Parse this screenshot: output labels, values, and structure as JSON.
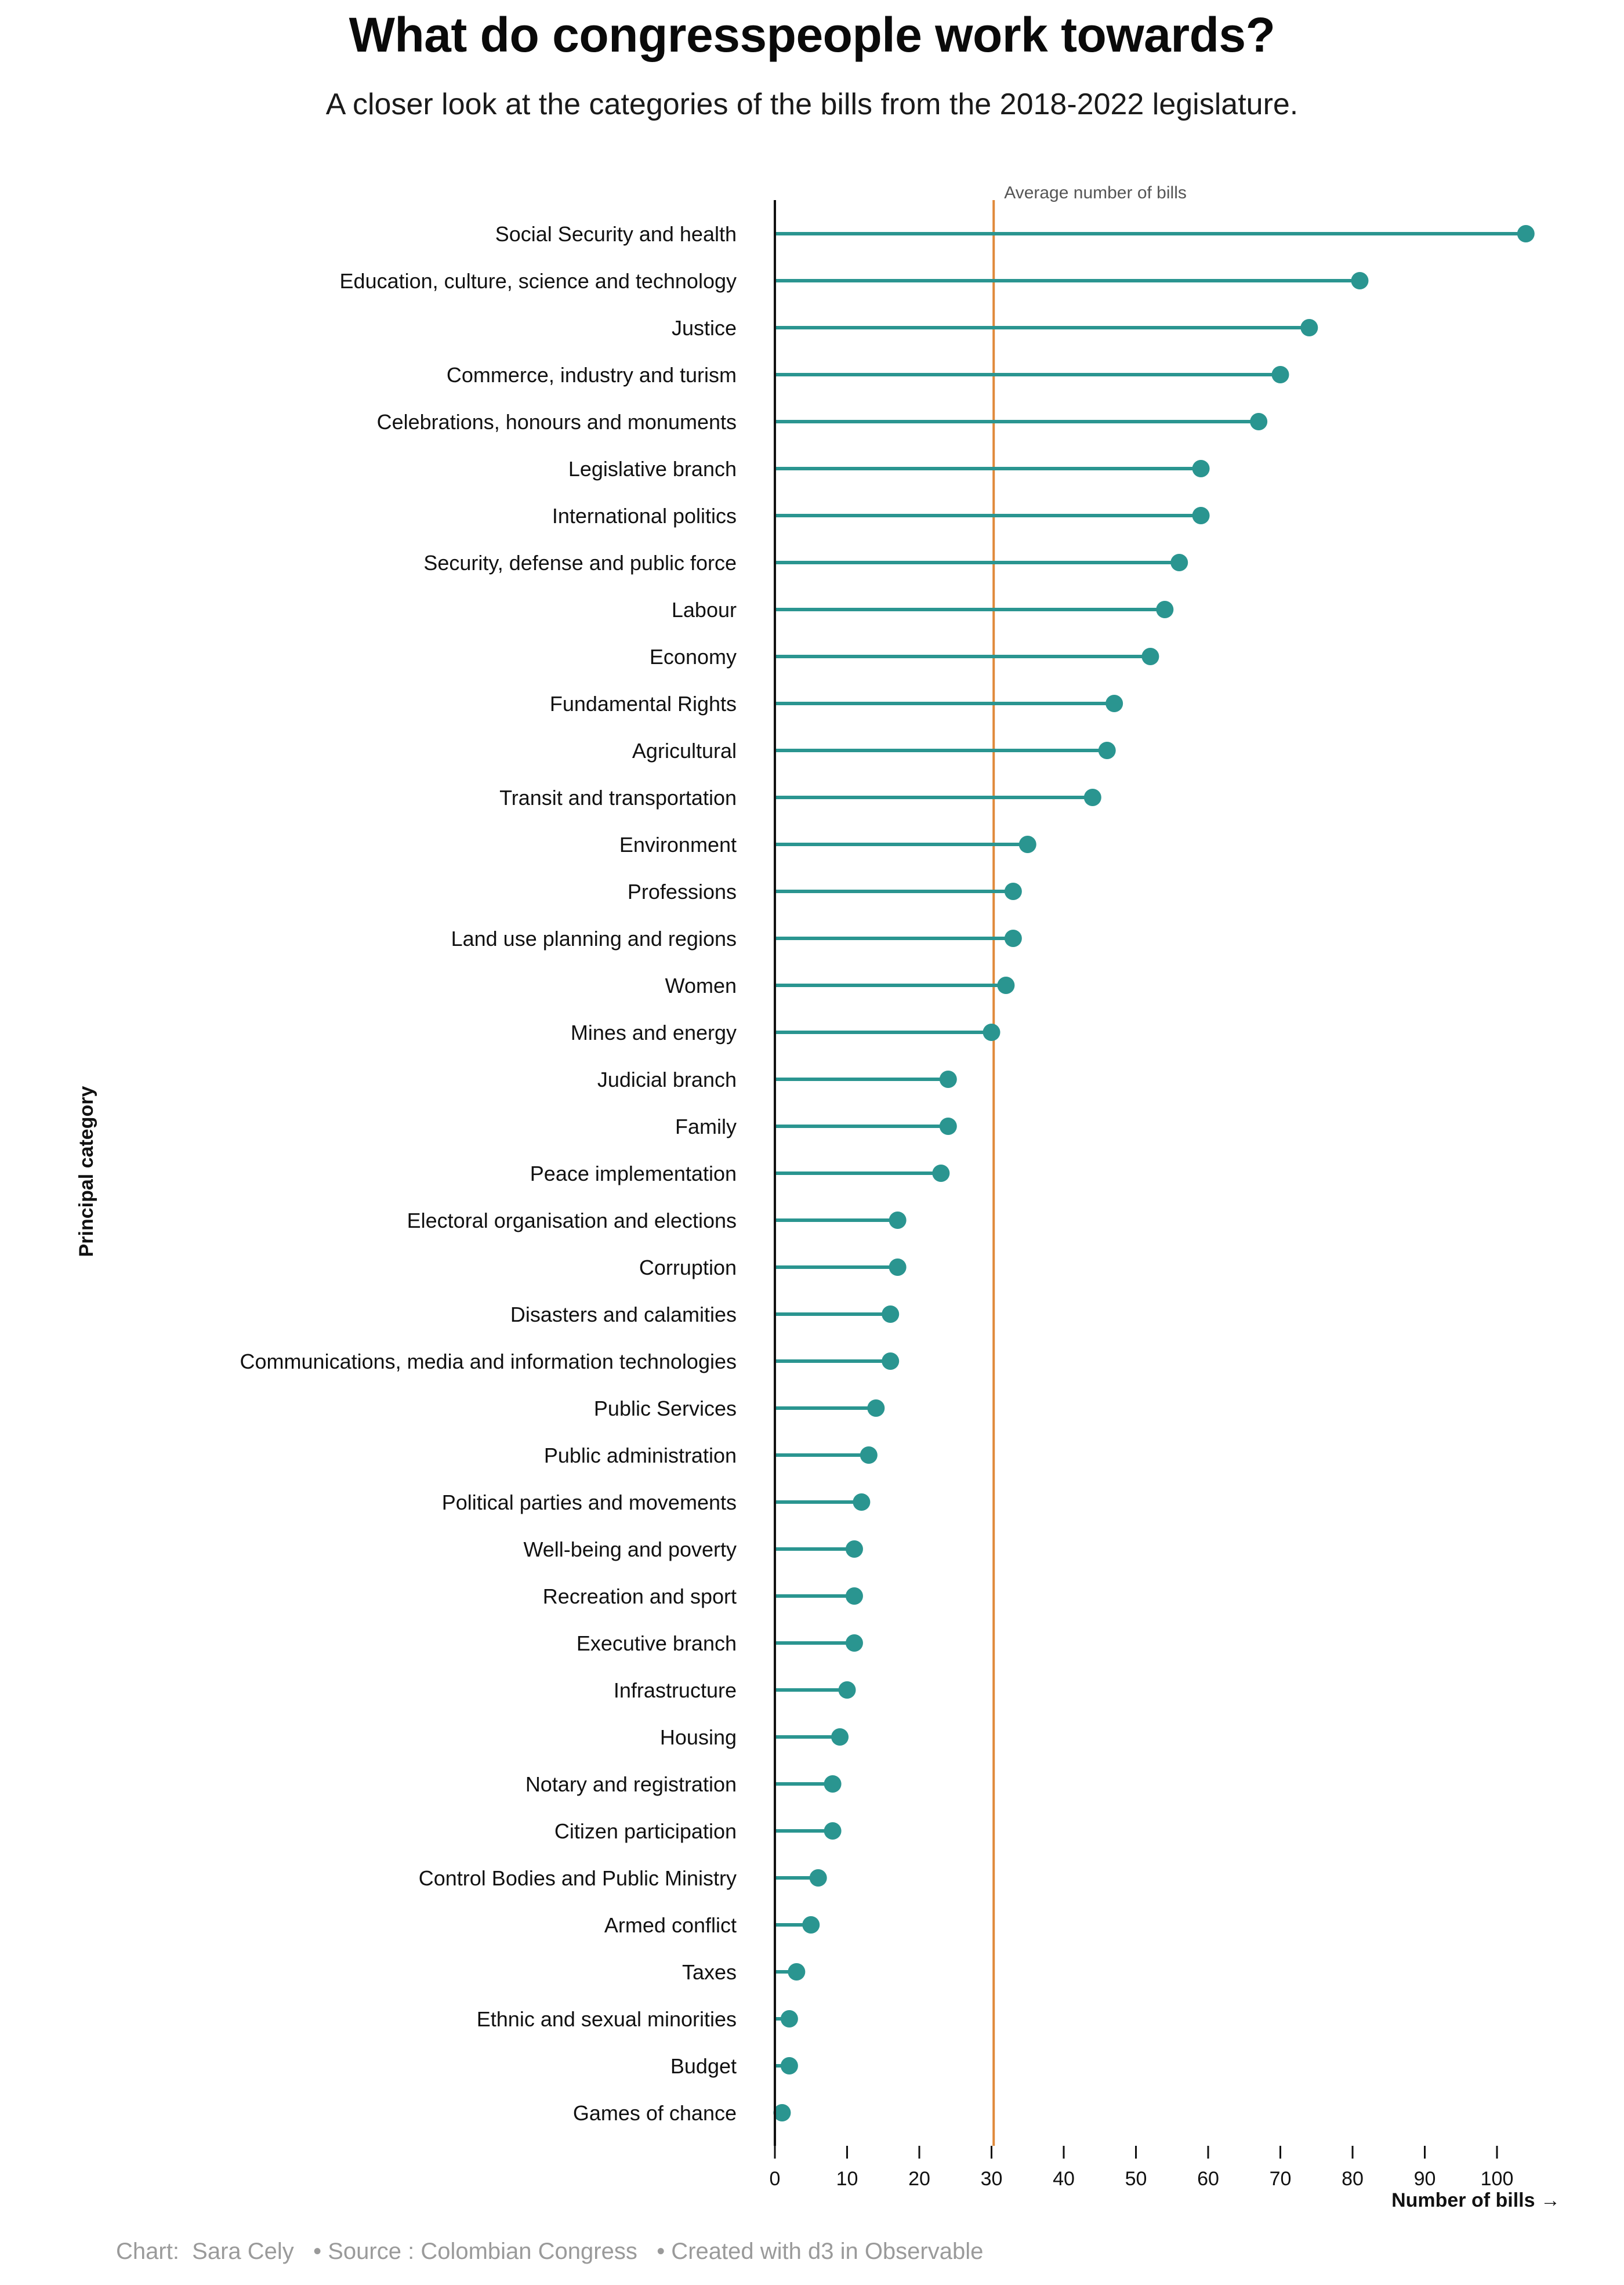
{
  "header": {
    "title": "What do congresspeople work towards?",
    "subtitle": "A closer look at the categories of the bills from the 2018-2022 legislature."
  },
  "footer": {
    "chart_credit": "Chart:  Sara Cely",
    "source": "• Source : Colombian Congress",
    "tool": "• Created with d3 in Observable"
  },
  "colors": {
    "series": "#2a9590",
    "average_line": "#e0893a",
    "axis": "#111111"
  },
  "chart_data": {
    "type": "lollipop",
    "orientation": "horizontal",
    "xlabel": "Number of bills →",
    "ylabel": "Principal category",
    "xlim": [
      0,
      105
    ],
    "xticks": [
      0,
      10,
      20,
      30,
      40,
      50,
      60,
      70,
      80,
      90,
      100
    ],
    "grid": false,
    "reference_line": {
      "label": "Average number of bills",
      "value": 30.3
    },
    "categories": [
      "Social Security and health",
      "Education, culture, science and technology",
      "Justice",
      "Commerce, industry and turism",
      "Celebrations, honours and monuments",
      "Legislative branch",
      "International politics",
      "Security, defense and public force",
      "Labour",
      "Economy",
      "Fundamental Rights",
      "Agricultural",
      "Transit and transportation",
      "Environment",
      "Professions",
      "Land use planning and regions",
      "Women",
      "Mines and energy",
      "Judicial branch",
      "Family",
      "Peace implementation",
      "Electoral organisation and elections",
      "Corruption",
      "Disasters and calamities",
      "Communications, media and information technologies",
      "Public Services",
      "Public administration",
      "Political parties and movements",
      "Well-being and poverty",
      "Recreation and sport",
      "Executive branch",
      "Infrastructure",
      "Housing",
      "Notary and registration",
      "Citizen participation",
      "Control Bodies and Public Ministry",
      "Armed conflict",
      "Taxes",
      "Ethnic and sexual minorities",
      "Budget",
      "Games of chance"
    ],
    "values": [
      104,
      81,
      74,
      70,
      67,
      59,
      59,
      56,
      54,
      52,
      47,
      46,
      44,
      35,
      33,
      33,
      32,
      30,
      24,
      24,
      23,
      17,
      17,
      16,
      16,
      14,
      13,
      12,
      11,
      11,
      11,
      10,
      9,
      8,
      8,
      6,
      5,
      3,
      2,
      2,
      1
    ]
  }
}
